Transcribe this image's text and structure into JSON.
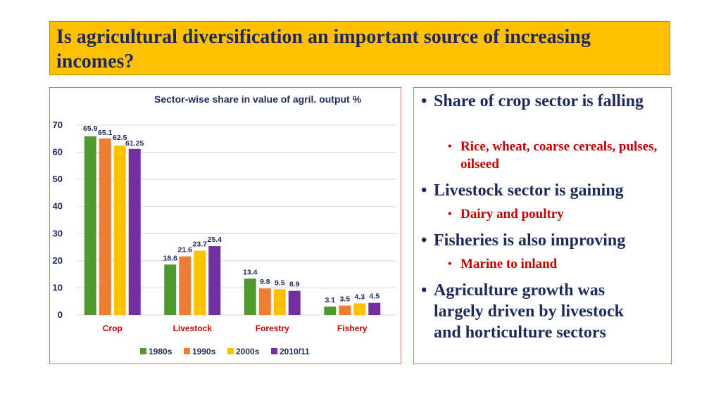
{
  "slide": {
    "title": "Is agricultural diversification an important source of increasing incomes?"
  },
  "chart_data": {
    "type": "bar",
    "title": "Sector-wise share in value of agril. output %",
    "categories": [
      "Crop",
      "Livestock",
      "Forestry",
      "Fishery"
    ],
    "series": [
      {
        "name": "1980s",
        "values": [
          65.9,
          18.6,
          13.4,
          3.1
        ],
        "labels": [
          "65.9",
          "18.6",
          "13.4",
          "3.1"
        ],
        "color": "#4E9A2E"
      },
      {
        "name": "1990s",
        "values": [
          65.1,
          21.6,
          9.8,
          3.5
        ],
        "labels": [
          "65.1",
          "21.6",
          "9.8",
          "3.5"
        ],
        "color": "#ED7D31"
      },
      {
        "name": "2000s",
        "values": [
          62.5,
          23.7,
          9.5,
          4.3
        ],
        "labels": [
          "62.5",
          "23.7",
          "9.5",
          "4.3"
        ],
        "color": "#FFC000"
      },
      {
        "name": "2010/11",
        "values": [
          61.25,
          25.4,
          8.9,
          4.5
        ],
        "labels": [
          "61.25",
          "25.4",
          "8.9",
          "4.5"
        ],
        "color": "#7030A0"
      }
    ],
    "ylim": [
      0,
      70
    ],
    "yticks": [
      0,
      10,
      20,
      30,
      40,
      50,
      60,
      70
    ],
    "grid": true,
    "legend": "bottom"
  },
  "bullets": [
    {
      "text": "Share of crop sector is falling",
      "sub": [
        "Rice, wheat, coarse cereals, pulses, oilseed"
      ]
    },
    {
      "text": "Livestock sector is gaining",
      "sub": [
        "Dairy and poultry"
      ]
    },
    {
      "text": "Fisheries is also improving",
      "sub": [
        "Marine to inland"
      ]
    },
    {
      "text": "Agriculture growth was largely driven by livestock and horticulture sectors",
      "sub": []
    }
  ]
}
